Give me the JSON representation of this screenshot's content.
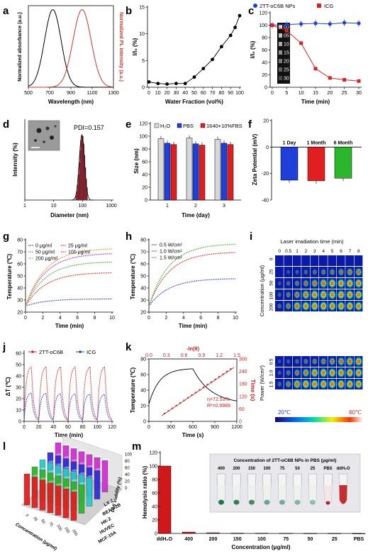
{
  "panels": {
    "a": {
      "label": "a",
      "xlabel": "Wavelength (nm)",
      "ylabel_left": "Normalized absorbance (a.u.)",
      "ylabel_right": "Normalized PL intensity (a.u.)",
      "xticks": [
        "500",
        "700",
        "900",
        "1100",
        "1300"
      ],
      "xlim": [
        500,
        1300
      ],
      "ylim": [
        0,
        1.05
      ],
      "series": [
        {
          "color": "#000000",
          "center": 730,
          "width": 110
        },
        {
          "color": "#d9312b",
          "center": 1005,
          "width": 120
        }
      ]
    },
    "b": {
      "label": "b",
      "xlabel": "Water Fraction (vol%)",
      "ylabel": "I/I₀ (%)",
      "xticks": [
        "0",
        "10",
        "20",
        "30",
        "40",
        "50",
        "60",
        "70",
        "80",
        "90",
        "100"
      ],
      "yticks": [
        "0",
        "5",
        "10",
        "15"
      ],
      "xlim": [
        0,
        100
      ],
      "ylim": [
        0,
        15
      ],
      "x": [
        0,
        10,
        20,
        30,
        40,
        50,
        60,
        70,
        80,
        90,
        95,
        100
      ],
      "y": [
        1.0,
        0.7,
        0.6,
        0.7,
        0.7,
        1.9,
        3.5,
        5.2,
        7.6,
        9.7,
        11.2,
        13.4
      ]
    },
    "c": {
      "label": "c",
      "xlabel": "Time (min)",
      "ylabel": "I/I₀ (%)",
      "xticks": [
        "0",
        "5",
        "10",
        "15",
        "20",
        "25",
        "30"
      ],
      "yticks": [
        "0",
        "20",
        "40",
        "60",
        "80",
        "100",
        "120"
      ],
      "xlim": [
        0,
        30
      ],
      "ylim": [
        0,
        120
      ],
      "legend": [
        "2TT-oC6B NPs",
        "ICG"
      ],
      "series": [
        {
          "name": "2TT-oC6B NPs",
          "color": "#1f3fd8",
          "x": [
            0,
            5,
            10,
            15,
            20,
            25,
            30
          ],
          "y": [
            100,
            101,
            102,
            103,
            102,
            104,
            103
          ]
        },
        {
          "name": "ICG",
          "color": "#e02020",
          "x": [
            0,
            5,
            10,
            15,
            20,
            25,
            30
          ],
          "y": [
            100,
            91,
            71,
            30,
            15,
            12,
            10
          ]
        }
      ],
      "inset_times": [
        "00",
        "05",
        "10",
        "15",
        "20",
        "25",
        "30"
      ]
    },
    "d": {
      "label": "d",
      "xlabel": "Diameter (nm)",
      "ylabel": "Intensity (%)",
      "pdi": "PDI=0.157",
      "xticks": [
        "1",
        "10",
        "100",
        "1000"
      ]
    },
    "e": {
      "label": "e",
      "xlabel": "Time (day)",
      "ylabel": "Size (nm)",
      "xticks": [
        "1",
        "2",
        "3"
      ],
      "yticks": [
        "0",
        "20",
        "40",
        "60",
        "80",
        "100",
        "120"
      ],
      "ylim": [
        0,
        120
      ],
      "legend": [
        "H₂O",
        "PBS",
        "1640+10%FBS"
      ],
      "colors": [
        "#d8d8d8",
        "#1f3fd8",
        "#e02020"
      ],
      "values": [
        [
          96,
          89,
          87
        ],
        [
          97,
          88,
          86
        ],
        [
          95,
          89,
          87
        ]
      ]
    },
    "f": {
      "label": "f",
      "ylabel": "Zeta Potential (mV)",
      "yticks": [
        "-40",
        "-20",
        "0",
        "20"
      ],
      "ylim": [
        -40,
        20
      ],
      "categories": [
        "1 Day",
        "1 Month",
        "6 Month"
      ],
      "colors": [
        "#1f3fd8",
        "#e02020",
        "#2cb62c"
      ],
      "values": [
        -25,
        -25.5,
        -23.5
      ]
    },
    "g": {
      "label": "g",
      "xlabel": "Time (min)",
      "ylabel": "Temperature (℃)",
      "xticks": [
        "0",
        "2",
        "4",
        "6",
        "8",
        "10"
      ],
      "yticks": [
        "20",
        "30",
        "40",
        "50",
        "60",
        "70",
        "80"
      ],
      "xlim": [
        0,
        10
      ],
      "ylim": [
        20,
        80
      ],
      "legend": [
        "0 μg/ml",
        "25 μg/ml",
        "50 μg/ml",
        "100 μg/ml",
        "200 μg/ml"
      ],
      "series": [
        {
          "name": "0 μg/ml",
          "color": "#1f3fd8",
          "plateau": 31
        },
        {
          "name": "25 μg/ml",
          "color": "#e02020",
          "plateau": 53
        },
        {
          "name": "50 μg/ml",
          "color": "#2cb62c",
          "plateau": 62
        },
        {
          "name": "100 μg/ml",
          "color": "#c020c0",
          "plateau": 69
        },
        {
          "name": "200 μg/ml",
          "color": "#e09020",
          "plateau": 73
        }
      ]
    },
    "h": {
      "label": "h",
      "xlabel": "Time (min)",
      "ylabel": "Temperature (℃)",
      "xticks": [
        "0",
        "2",
        "4",
        "6",
        "8",
        "10"
      ],
      "yticks": [
        "20",
        "30",
        "40",
        "50",
        "60",
        "70",
        "80"
      ],
      "xlim": [
        0,
        10
      ],
      "ylim": [
        20,
        80
      ],
      "legend": [
        "0.5 W/cm²",
        "1.0 W/cm²",
        "1.5 W/cm²"
      ],
      "series": [
        {
          "name": "0.5 W/cm²",
          "color": "#1f3fd8",
          "plateau": 48
        },
        {
          "name": "1.0 W/cm²",
          "color": "#e02020",
          "plateau": 70
        },
        {
          "name": "1.5 W/cm²",
          "color": "#2cb62c",
          "plateau": 77
        }
      ]
    },
    "i": {
      "label": "i",
      "title": "Laser irradiation time (min)",
      "times": [
        "0",
        "0.5",
        "1",
        "2",
        "3",
        "4",
        "5",
        "6",
        "7",
        "8"
      ],
      "conc_label": "Concentration (μg/ml)",
      "conc_rows": [
        "0",
        "25",
        "50",
        "100",
        "200"
      ],
      "power_label": "Power (W/cm²)",
      "power_rows": [
        "0.5",
        "1.0",
        "1.5"
      ],
      "scale_min": "20℃",
      "scale_max": "60℃"
    },
    "j": {
      "label": "j",
      "xlabel": "Time (min)",
      "ylabel": "ΔT (℃)",
      "xticks": [
        "0",
        "20",
        "40",
        "60",
        "80",
        "100",
        "120"
      ],
      "yticks": [
        "0",
        "10",
        "20",
        "30",
        "40",
        "50",
        "60"
      ],
      "xlim": [
        0,
        120
      ],
      "ylim": [
        0,
        60
      ],
      "legend": [
        "2TT-oC6B",
        "ICG"
      ],
      "colors": [
        "#e02020",
        "#1f3fd8"
      ]
    },
    "k": {
      "label": "k",
      "xlabel": "Time (s)",
      "ylabel": "Temperature (℃)",
      "ylabel_right": "Time (s)",
      "xlabel_top": "-ln(θ)",
      "xticks": [
        "0",
        "300",
        "600",
        "900",
        "1200"
      ],
      "yticks": [
        "0",
        "20",
        "40",
        "60",
        "80"
      ],
      "topticks": [
        "0.0",
        "0.3",
        "0.6",
        "0.9",
        "1.2",
        "1.5"
      ],
      "rticks": [
        "0",
        "60",
        "120",
        "180",
        "240",
        "300"
      ],
      "eta": "η=72.53%",
      "r2": "R²=0.9989"
    },
    "l": {
      "label": "l",
      "cells": [
        "MCF-10A",
        "HUVEC",
        "HK-2",
        "BEAS-2B",
        "LX-2"
      ],
      "xlabel": "Concentration (μg/ml)",
      "zlabel": "Cell Viability (%)",
      "zticks": [
        "0",
        "20",
        "40",
        "60",
        "80",
        "100"
      ],
      "conc": [
        "0",
        "25",
        "50",
        "75",
        "100",
        "150",
        "200"
      ]
    },
    "m": {
      "label": "m",
      "ylabel": "Hemolysis ratio (%)",
      "xlabel": "Concentration (μg/ml)",
      "yticks": [
        "0",
        "20",
        "40",
        "60",
        "80",
        "100",
        "120"
      ],
      "ylim": [
        0,
        120
      ],
      "categories": [
        "ddH₂O",
        "400",
        "200",
        "150",
        "100",
        "75",
        "50",
        "25",
        "PBS"
      ],
      "values": [
        100,
        2,
        1,
        0.5,
        0.4,
        0.3,
        0.2,
        0.2,
        0
      ],
      "inset_title": "Concentration of 2TT-oC6B NPs in PBS (μg/ml)",
      "tubes": [
        "400",
        "200",
        "150",
        "100",
        "75",
        "50",
        "25",
        "PBS",
        "ddH₂O"
      ]
    }
  }
}
